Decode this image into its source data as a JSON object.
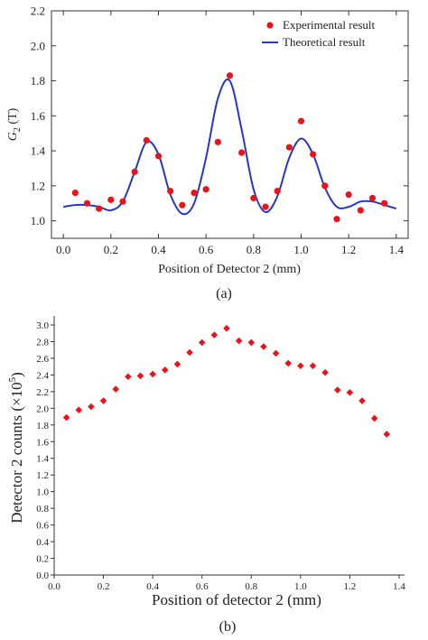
{
  "chart_data": [
    {
      "type": "scatter",
      "panel_label": "(a)",
      "xlabel": "Position of Detector 2 (mm)",
      "ylabel_main": "G",
      "ylabel_sub": "2",
      "ylabel_tail": " (T)",
      "xlim": [
        -0.05,
        1.45
      ],
      "ylim": [
        0.9,
        2.2
      ],
      "xticks": [
        0.0,
        0.2,
        0.4,
        0.6,
        0.8,
        1.0,
        1.2,
        1.4
      ],
      "xtick_labels": [
        "0.0",
        "0.2",
        "0.4",
        "0.6",
        "0.8",
        "1.0",
        "1.2",
        "1.4"
      ],
      "yticks": [
        1.0,
        1.2,
        1.4,
        1.6,
        1.8,
        2.0,
        2.2
      ],
      "ytick_labels": [
        "1.0",
        "1.2",
        "1.4",
        "1.6",
        "1.8",
        "2.0",
        "2.2"
      ],
      "legend_position": "top-right",
      "series": [
        {
          "name": "Experimental result",
          "kind": "points",
          "color": "#e8141b",
          "points": [
            [
              0.05,
              1.16
            ],
            [
              0.1,
              1.1
            ],
            [
              0.15,
              1.07
            ],
            [
              0.2,
              1.12
            ],
            [
              0.25,
              1.11
            ],
            [
              0.3,
              1.28
            ],
            [
              0.35,
              1.46
            ],
            [
              0.4,
              1.37
            ],
            [
              0.45,
              1.17
            ],
            [
              0.5,
              1.09
            ],
            [
              0.55,
              1.16
            ],
            [
              0.6,
              1.18
            ],
            [
              0.65,
              1.45
            ],
            [
              0.7,
              1.83
            ],
            [
              0.75,
              1.39
            ],
            [
              0.8,
              1.13
            ],
            [
              0.85,
              1.08
            ],
            [
              0.9,
              1.17
            ],
            [
              0.95,
              1.42
            ],
            [
              1.0,
              1.57
            ],
            [
              1.05,
              1.38
            ],
            [
              1.1,
              1.2
            ],
            [
              1.15,
              1.01
            ],
            [
              1.2,
              1.15
            ],
            [
              1.25,
              1.06
            ],
            [
              1.3,
              1.13
            ],
            [
              1.35,
              1.1
            ]
          ]
        },
        {
          "name": "Theoretical result",
          "kind": "line",
          "color": "#2438c8",
          "points": [
            [
              0.0,
              1.08
            ],
            [
              0.05,
              1.09
            ],
            [
              0.1,
              1.09
            ],
            [
              0.15,
              1.08
            ],
            [
              0.2,
              1.06
            ],
            [
              0.25,
              1.11
            ],
            [
              0.3,
              1.28
            ],
            [
              0.35,
              1.45
            ],
            [
              0.4,
              1.38
            ],
            [
              0.45,
              1.15
            ],
            [
              0.5,
              1.04
            ],
            [
              0.55,
              1.1
            ],
            [
              0.6,
              1.36
            ],
            [
              0.65,
              1.7
            ],
            [
              0.7,
              1.8
            ],
            [
              0.75,
              1.52
            ],
            [
              0.8,
              1.18
            ],
            [
              0.85,
              1.05
            ],
            [
              0.9,
              1.14
            ],
            [
              0.95,
              1.36
            ],
            [
              1.0,
              1.47
            ],
            [
              1.05,
              1.38
            ],
            [
              1.1,
              1.19
            ],
            [
              1.15,
              1.08
            ],
            [
              1.2,
              1.08
            ],
            [
              1.25,
              1.11
            ],
            [
              1.3,
              1.11
            ],
            [
              1.35,
              1.09
            ],
            [
              1.4,
              1.07
            ]
          ]
        }
      ]
    },
    {
      "type": "scatter",
      "panel_label": "(b)",
      "xlabel": "Position of detector 2 (mm)",
      "ylabel_main": "Detector 2 counts (×10",
      "ylabel_sup": "5",
      "ylabel_tail": ")",
      "xlim": [
        0.0,
        1.4
      ],
      "ylim": [
        0.0,
        3.1
      ],
      "xticks": [
        0.0,
        0.2,
        0.4,
        0.6,
        0.8,
        1.0,
        1.2,
        1.4
      ],
      "xtick_labels": [
        "0.0",
        "0.2",
        "0.4",
        "0.6",
        "0.8",
        "1.0",
        "1.2",
        "1.4"
      ],
      "yticks": [
        0.0,
        0.2,
        0.4,
        0.6,
        0.8,
        1.0,
        1.2,
        1.4,
        1.6,
        1.8,
        2.0,
        2.2,
        2.4,
        2.6,
        2.8,
        3.0
      ],
      "ytick_labels": [
        "0.0",
        "0.2",
        "0.4",
        "0.6",
        "0.8",
        "1.0",
        "1.2",
        "1.4",
        "1.6",
        "1.8",
        "2.0",
        "2.2",
        "2.4",
        "2.6",
        "2.8",
        "3.0"
      ],
      "series": [
        {
          "kind": "diamonds",
          "color": "#e8141b",
          "points": [
            [
              0.05,
              1.89
            ],
            [
              0.1,
              1.98
            ],
            [
              0.15,
              2.02
            ],
            [
              0.2,
              2.09
            ],
            [
              0.25,
              2.23
            ],
            [
              0.3,
              2.38
            ],
            [
              0.35,
              2.39
            ],
            [
              0.4,
              2.41
            ],
            [
              0.45,
              2.46
            ],
            [
              0.5,
              2.53
            ],
            [
              0.55,
              2.67
            ],
            [
              0.6,
              2.79
            ],
            [
              0.65,
              2.88
            ],
            [
              0.7,
              2.96
            ],
            [
              0.75,
              2.81
            ],
            [
              0.8,
              2.79
            ],
            [
              0.85,
              2.74
            ],
            [
              0.9,
              2.66
            ],
            [
              0.95,
              2.54
            ],
            [
              1.0,
              2.51
            ],
            [
              1.05,
              2.51
            ],
            [
              1.1,
              2.43
            ],
            [
              1.15,
              2.22
            ],
            [
              1.2,
              2.19
            ],
            [
              1.25,
              2.09
            ],
            [
              1.3,
              1.88
            ],
            [
              1.35,
              1.69
            ]
          ]
        }
      ]
    }
  ]
}
